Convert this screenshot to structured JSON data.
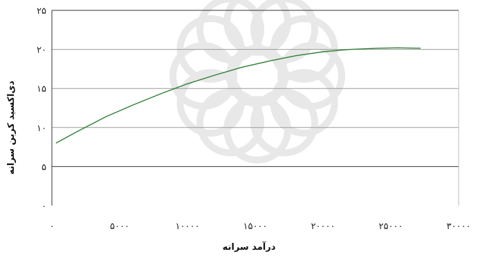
{
  "chart_data": {
    "type": "line",
    "title": "",
    "xlabel": "درآمد سرانه",
    "ylabel": "دی‌اکسید کربن سرانه",
    "xlim": [
      0,
      30000
    ],
    "ylim": [
      0,
      25
    ],
    "x_ticks": [
      0,
      5000,
      10000,
      15000,
      20000,
      25000,
      30000
    ],
    "x_tick_labels": [
      "۰",
      "۵۰۰۰",
      "۱۰۰۰۰",
      "۱۵۰۰۰",
      "۲۰۰۰۰",
      "۲۵۰۰۰",
      "۳۰۰۰۰"
    ],
    "y_ticks": [
      0,
      5,
      10,
      15,
      20,
      25
    ],
    "y_tick_labels": [
      "۰",
      "۵",
      "۱۰",
      "۱۵",
      "۲۰",
      "۲۵"
    ],
    "grid": "horizontal",
    "legend": "none",
    "series": [
      {
        "color": "#2e7d32",
        "x": [
          300,
          2000,
          4000,
          6000,
          8000,
          10000,
          12000,
          14000,
          16000,
          18000,
          20000,
          22000,
          24000,
          25500,
          27200
        ],
        "y": [
          8.0,
          9.6,
          11.4,
          12.9,
          14.3,
          15.6,
          16.7,
          17.7,
          18.5,
          19.2,
          19.7,
          20.0,
          20.15,
          20.2,
          20.15
        ]
      }
    ]
  }
}
